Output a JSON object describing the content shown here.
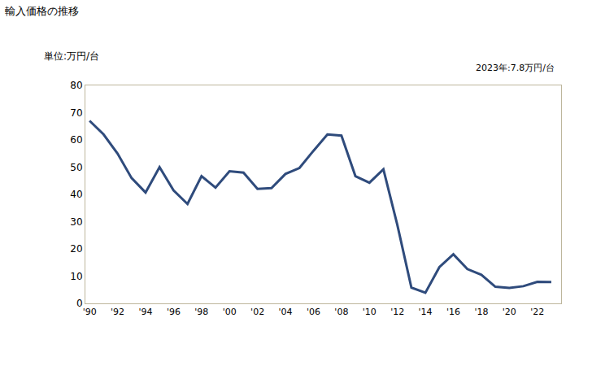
{
  "chart_data": {
    "type": "line",
    "title": "輸入価格の推移",
    "y_label": "単位:万円/台",
    "annotations": [
      "2023年:7.8万円/台"
    ],
    "x": [
      1990,
      1991,
      1992,
      1993,
      1994,
      1995,
      1996,
      1997,
      1998,
      1999,
      2000,
      2001,
      2002,
      2003,
      2004,
      2005,
      2006,
      2007,
      2008,
      2009,
      2010,
      2011,
      2012,
      2013,
      2014,
      2015,
      2016,
      2017,
      2018,
      2019,
      2020,
      2021,
      2022,
      2023
    ],
    "values": [
      67,
      62,
      55,
      46,
      40.7,
      50,
      41.5,
      36.5,
      46.7,
      42.5,
      48.5,
      48,
      42,
      42.3,
      47.5,
      49.7,
      56,
      62,
      61.6,
      46.7,
      44.3,
      49.2,
      28.7,
      5.8,
      3.9,
      13.3,
      18,
      12.6,
      10.5,
      6.1,
      5.7,
      6.3,
      7.9,
      7.8
    ],
    "color": "#2f4b7c",
    "xlim": [
      1989.7,
      2023.7
    ],
    "xticks": [
      {
        "value": 1990,
        "label": "'90"
      },
      {
        "value": 1992,
        "label": "'92"
      },
      {
        "value": 1994,
        "label": "'94"
      },
      {
        "value": 1996,
        "label": "'96"
      },
      {
        "value": 1998,
        "label": "'98"
      },
      {
        "value": 2000,
        "label": "'00"
      },
      {
        "value": 2002,
        "label": "'02"
      },
      {
        "value": 2004,
        "label": "'04"
      },
      {
        "value": 2006,
        "label": "'06"
      },
      {
        "value": 2008,
        "label": "'08"
      },
      {
        "value": 2010,
        "label": "'10"
      },
      {
        "value": 2012,
        "label": "'12"
      },
      {
        "value": 2014,
        "label": "'14"
      },
      {
        "value": 2016,
        "label": "'16"
      },
      {
        "value": 2018,
        "label": "'18"
      },
      {
        "value": 2020,
        "label": "'20"
      },
      {
        "value": 2022,
        "label": "'22"
      }
    ],
    "ylim": [
      0,
      80
    ],
    "yticks": [
      0,
      10,
      20,
      30,
      40,
      50,
      60,
      70,
      80
    ],
    "grid": false
  }
}
